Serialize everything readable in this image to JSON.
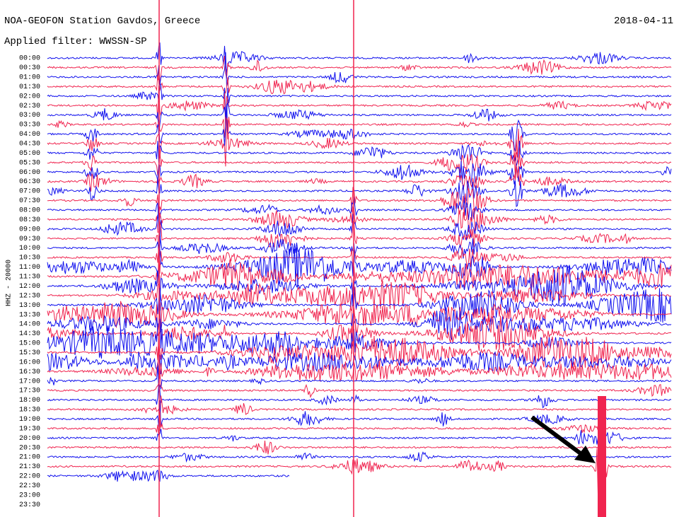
{
  "header": {
    "title": "NOA-GEOFON Station Gavdos, Greece",
    "date": "2018-04-11",
    "filter": "Applied filter: WWSSN-SP"
  },
  "channel_label": "HHZ - 20000",
  "rows": [
    "00:00",
    "00:30",
    "01:00",
    "01:30",
    "02:00",
    "02:30",
    "03:00",
    "03:30",
    "04:00",
    "04:30",
    "05:00",
    "05:30",
    "06:00",
    "06:30",
    "07:00",
    "07:30",
    "08:00",
    "08:30",
    "09:00",
    "09:30",
    "10:00",
    "10:30",
    "11:00",
    "11:30",
    "12:00",
    "12:30",
    "13:00",
    "13:30",
    "14:00",
    "14:30",
    "15:00",
    "15:30",
    "16:00",
    "16:30",
    "17:00",
    "17:30",
    "18:00",
    "18:30",
    "19:00",
    "19:30",
    "20:00",
    "20:30",
    "21:00",
    "21:30",
    "22:00",
    "22:30",
    "23:00",
    "23:30"
  ]
}
